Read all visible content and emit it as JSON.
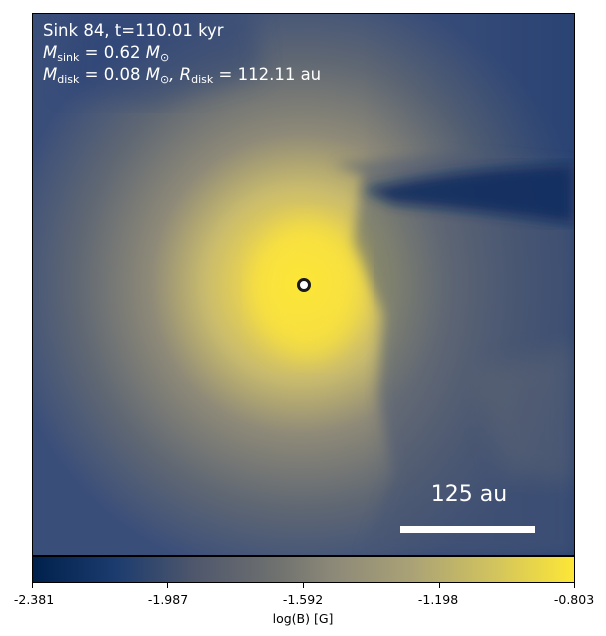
{
  "overlay": {
    "title": "Sink 84, t=110.01 kyr",
    "m_sink_symbol": "M",
    "m_sink_sub": "sink",
    "m_sink_value": " = 0.62 ",
    "m_sink_unit": "M",
    "m_sink_unit_sub": "⊙",
    "m_disk_symbol": "M",
    "m_disk_sub": "disk",
    "m_disk_value": " = 0.08 ",
    "m_disk_unit": "M",
    "m_disk_unit_sub": "⊙",
    "r_disk_symbol": ", R",
    "r_disk_sub": "disk",
    "r_disk_value": " = 112.11 au"
  },
  "scalebar": {
    "label": "125 au"
  },
  "colorbar": {
    "ticks": [
      "-2.381",
      "-1.987",
      "-1.592",
      "-1.198",
      "-0.803"
    ],
    "label": "log(B) [G]",
    "colormap": "cividis"
  }
}
